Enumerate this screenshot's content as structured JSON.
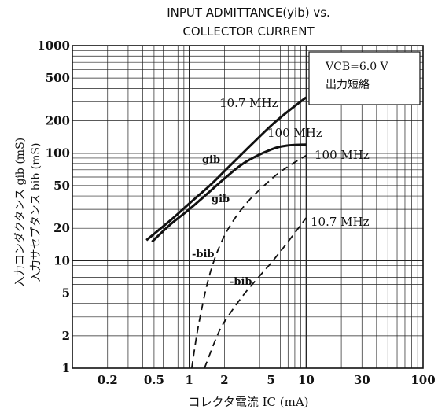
{
  "chart_data": {
    "type": "line",
    "title": "INPUT  ADMITTANCE(yib) vs.",
    "subtitle": "COLLECTOR  CURRENT",
    "xlabel": "コレクタ電流  IC  (mA)",
    "ylabel_line1": "入力コンダクタンス  gib  (mS)",
    "ylabel_line2": "入力サセプタンス  bib  (mS)",
    "xscale": "log",
    "yscale": "log",
    "xlim": [
      0.1,
      100
    ],
    "ylim": [
      1,
      1000
    ],
    "grid": true,
    "x_ticks": [
      "0.2",
      "0.5",
      "1",
      "2",
      "5",
      "10",
      "30",
      "100"
    ],
    "x_tick_values": [
      0.2,
      0.5,
      1,
      2,
      5,
      10,
      30,
      100
    ],
    "y_ticks": [
      "1",
      "2",
      "5",
      "10",
      "20",
      "50",
      "100",
      "200",
      "500",
      "1000"
    ],
    "y_tick_values": [
      1,
      2,
      5,
      10,
      20,
      50,
      100,
      200,
      500,
      1000
    ],
    "conditions": [
      "VCB=6.0  V",
      "出力短絡"
    ],
    "series": [
      {
        "name": "gib 10.7 MHz",
        "style": "solid",
        "x": [
          0.43,
          0.7,
          1.0,
          1.5,
          2.0,
          3.0,
          5.0,
          7.0,
          10.0
        ],
        "y": [
          15.5,
          24,
          34,
          50,
          68,
          105,
          180,
          245,
          330
        ]
      },
      {
        "name": "gib 100 MHz",
        "style": "solid",
        "x": [
          0.48,
          0.7,
          1.0,
          1.5,
          2.0,
          3.0,
          5.0,
          7.0,
          10.0
        ],
        "y": [
          15.0,
          22,
          30,
          44,
          58,
          82,
          108,
          118,
          120
        ]
      },
      {
        "name": "-bib 100 MHz",
        "style": "dashed",
        "x": [
          1.05,
          1.2,
          1.5,
          2.0,
          3.0,
          5.0,
          7.0,
          10.0
        ],
        "y": [
          1.0,
          2.5,
          7.5,
          17,
          33,
          57,
          75,
          95
        ]
      },
      {
        "name": "-bib 10.7 MHz",
        "style": "dashed",
        "x": [
          1.35,
          1.7,
          2.0,
          3.0,
          5.0,
          7.0,
          10.0
        ],
        "y": [
          1.0,
          1.9,
          2.7,
          5.0,
          9.5,
          15,
          25
        ]
      }
    ],
    "annotations": [
      {
        "id": "lbl-107-top",
        "text": "10.7 MHz"
      },
      {
        "id": "lbl-100-top",
        "text": "100 MHz"
      },
      {
        "id": "lbl-100-mid",
        "text": "100 MHz"
      },
      {
        "id": "lbl-107-bot",
        "text": "10.7 MHz"
      },
      {
        "id": "lbl-gib-1",
        "text": "gib"
      },
      {
        "id": "lbl-gib-2",
        "text": "gib"
      },
      {
        "id": "lbl-bib-1",
        "text": "-bib"
      },
      {
        "id": "lbl-bib-2",
        "text": "-bib"
      }
    ]
  }
}
